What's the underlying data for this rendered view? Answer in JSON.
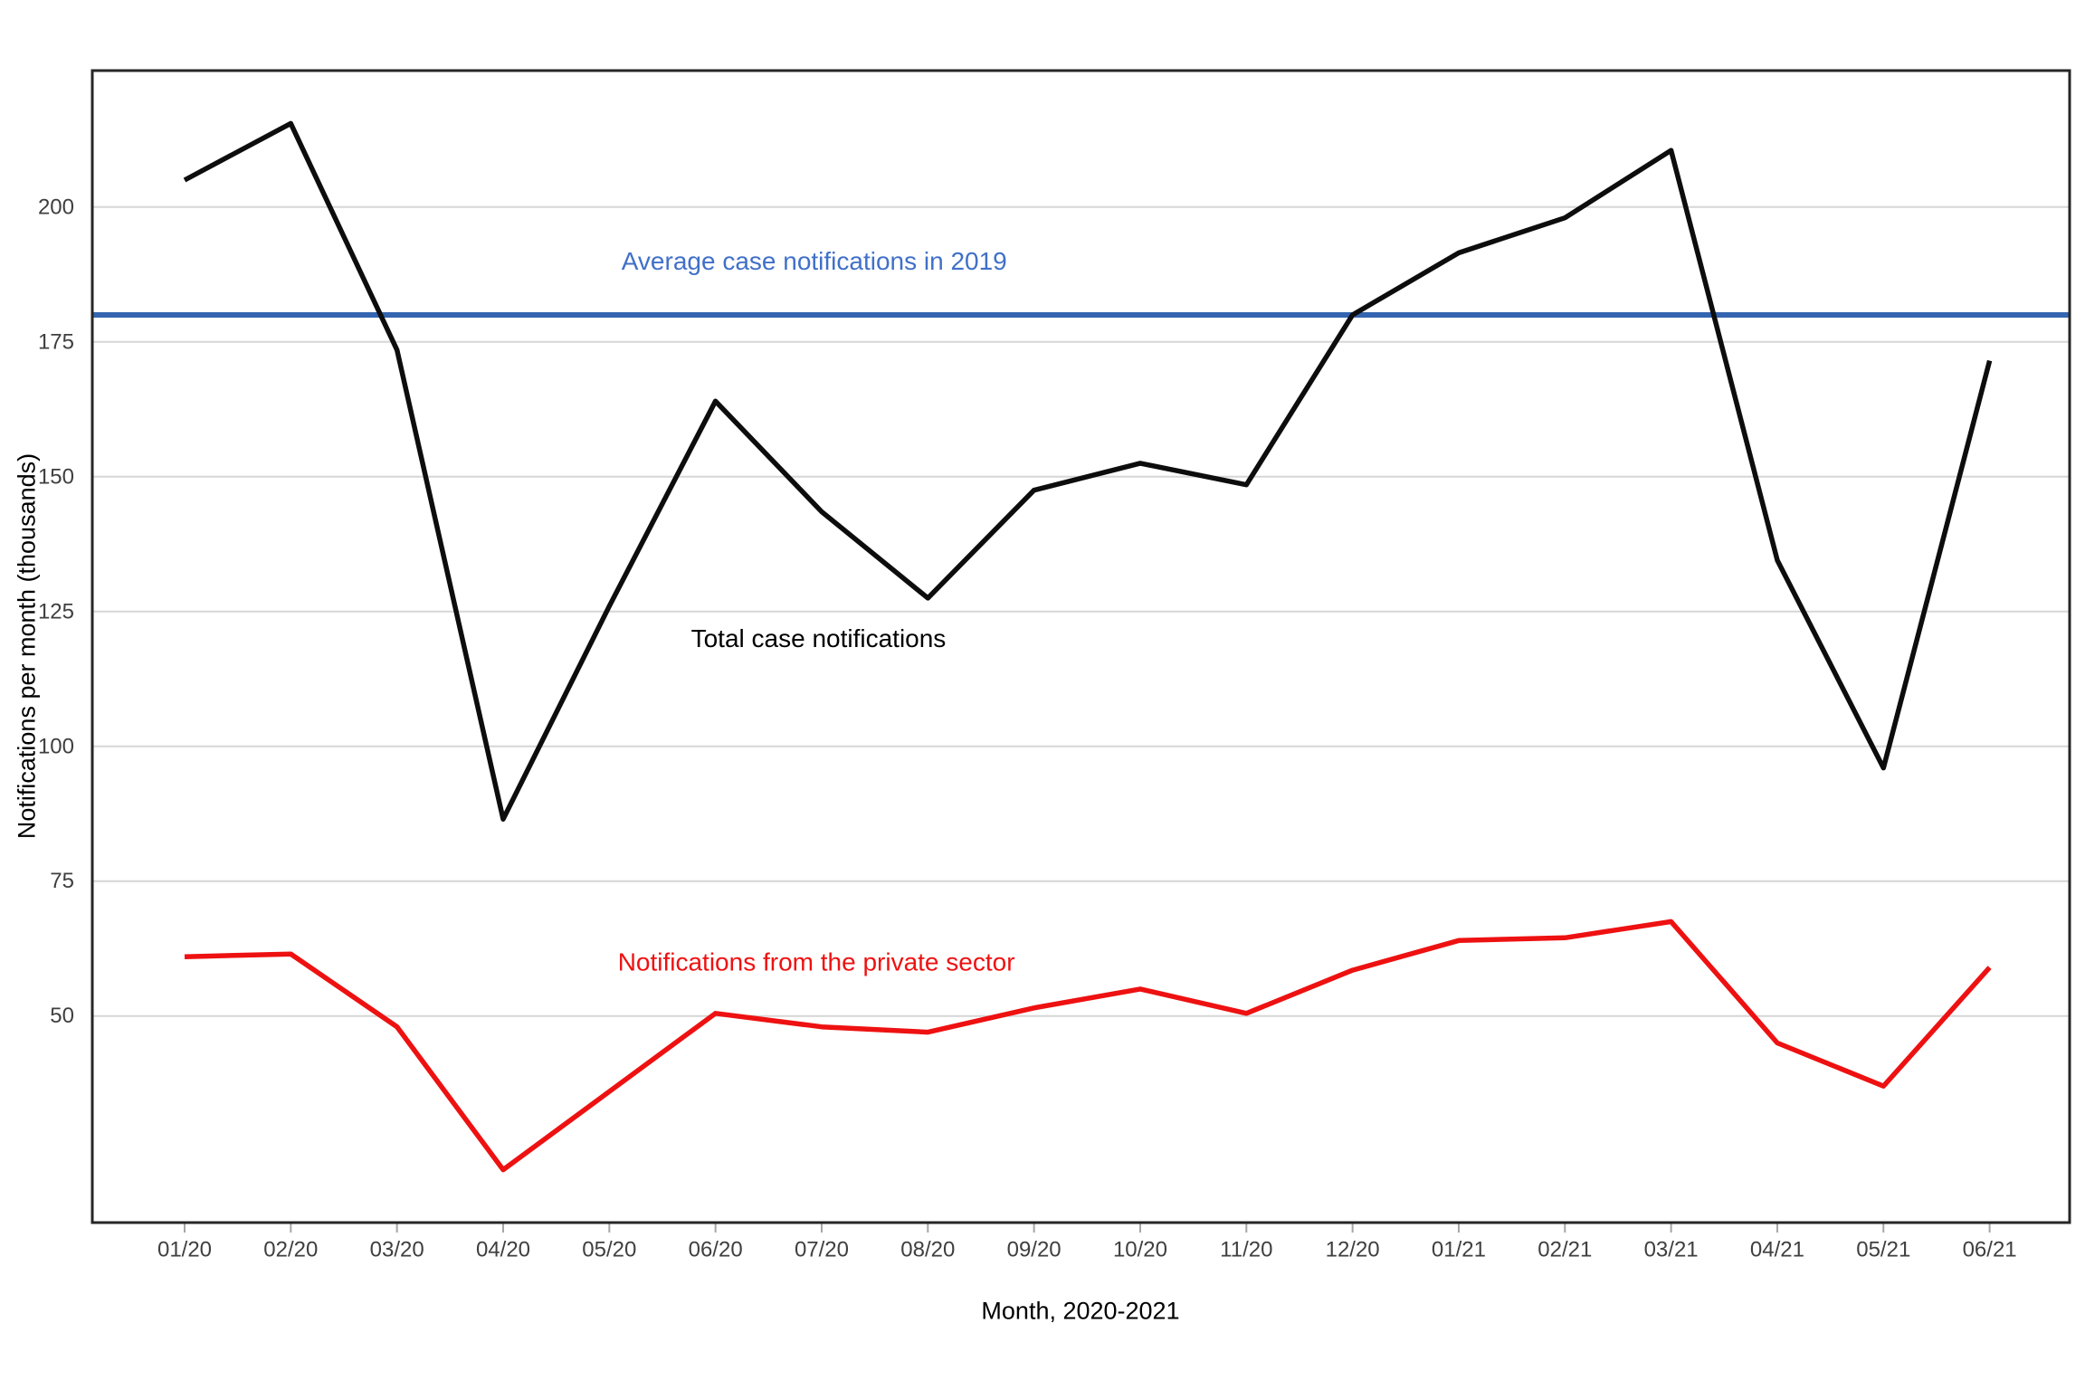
{
  "page": {
    "background": "#ffffff"
  },
  "chart_data": {
    "type": "line",
    "title": "",
    "xlabel": "Month, 2020-2021",
    "ylabel": "Notifications per month (thousands)",
    "x_categories": [
      "01/20",
      "02/20",
      "03/20",
      "04/20",
      "05/20",
      "06/20",
      "07/20",
      "08/20",
      "09/20",
      "10/20",
      "11/20",
      "12/20",
      "01/21",
      "02/21",
      "03/21",
      "04/21",
      "05/21",
      "06/21"
    ],
    "y_ticks": [
      50,
      75,
      100,
      125,
      150,
      175,
      200
    ],
    "ylim": [
      11.7,
      225.3
    ],
    "grid": "horizontal-only",
    "legend": "inline-annotations",
    "series": [
      {
        "name": "Total case notifications",
        "color": "#0d0d0d",
        "stroke_width": 5.5,
        "values": [
          205,
          215.5,
          173.5,
          86.5,
          126,
          164,
          143.5,
          127.5,
          147.5,
          152.5,
          148.5,
          180,
          191.5,
          198,
          210.5,
          134.5,
          96,
          171.5
        ]
      },
      {
        "name": "Notifications from the private sector",
        "color": "#ee1111",
        "stroke_width": 5.5,
        "values": [
          61,
          61.5,
          48,
          21.5,
          36,
          50.5,
          48,
          47,
          51.5,
          55,
          50.5,
          58.5,
          64,
          64.5,
          67.5,
          45,
          37,
          59
        ]
      }
    ],
    "reference_line": {
      "label": "Average case notifications in 2019",
      "value": 180,
      "color": "#3465b0",
      "stroke_width": 6
    },
    "annotations": [
      {
        "text": "Average case notifications in 2019",
        "color": "#4070c8",
        "x_index": 5.93,
        "y_value": 190
      },
      {
        "text": "Total case notifications",
        "color": "#000000",
        "x_index": 5.97,
        "y_value": 120
      },
      {
        "text": "Notifications from the private sector",
        "color": "#ee1111",
        "x_index": 5.95,
        "y_value": 60
      }
    ],
    "axis_style": {
      "tick_label_color": "#3f3f3f",
      "title_color": "#000000",
      "grid_color": "#d6d6d6",
      "border_color": "#262626",
      "tick_mark_color": "#a6a6a6"
    }
  }
}
